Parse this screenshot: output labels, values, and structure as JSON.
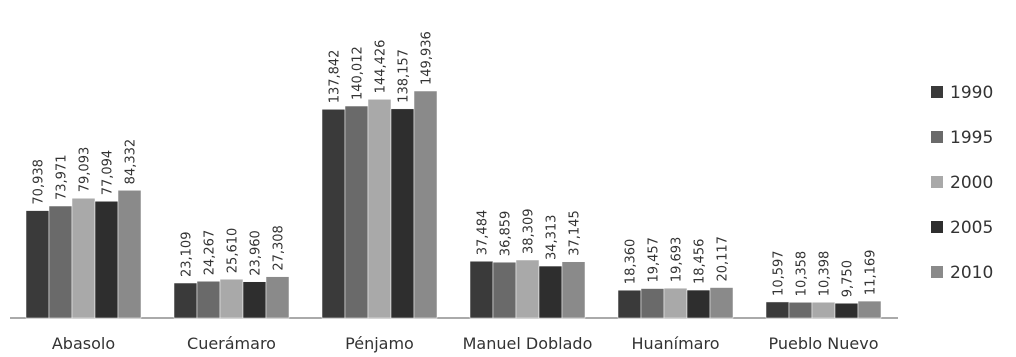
{
  "chart_data": {
    "type": "bar",
    "title": "",
    "xlabel": "",
    "ylabel": "",
    "ylim": [
      0,
      160000
    ],
    "categories": [
      "Abasolo",
      "Cuerámaro",
      "Pénjamo",
      "Manuel Doblado",
      "Huanímaro",
      "Pueblo Nuevo"
    ],
    "series": [
      {
        "name": "1990",
        "values": [
          70938,
          23109,
          137842,
          37484,
          18360,
          10597
        ],
        "labels": [
          "70,938",
          "23,109",
          "137,842",
          "37,484",
          "18,360",
          "10,597"
        ],
        "color": "#3a3a3a"
      },
      {
        "name": "1995",
        "values": [
          73971,
          24267,
          140012,
          36859,
          19457,
          10358
        ],
        "labels": [
          "73,971",
          "24,267",
          "140,012",
          "36,859",
          "19,457",
          "10,358"
        ],
        "color": "#6a6a6a"
      },
      {
        "name": "2000",
        "values": [
          79093,
          25610,
          144426,
          38309,
          19693,
          10398
        ],
        "labels": [
          "79,093",
          "25,610",
          "144,426",
          "38,309",
          "19,693",
          "10,398"
        ],
        "color": "#a9a9a9"
      },
      {
        "name": "2005",
        "values": [
          77094,
          23960,
          138157,
          34313,
          18456,
          9750
        ],
        "labels": [
          "77,094",
          "23,960",
          "138,157",
          "34,313",
          "18,456",
          "9,750"
        ],
        "color": "#2e2e2e"
      },
      {
        "name": "2010",
        "values": [
          84332,
          27308,
          149936,
          37145,
          20117,
          11169
        ],
        "labels": [
          "84,332",
          "27,308",
          "149,936",
          "37,145",
          "20,117",
          "11,169"
        ],
        "color": "#8a8a8a"
      }
    ],
    "legend": "right",
    "grid": false
  }
}
